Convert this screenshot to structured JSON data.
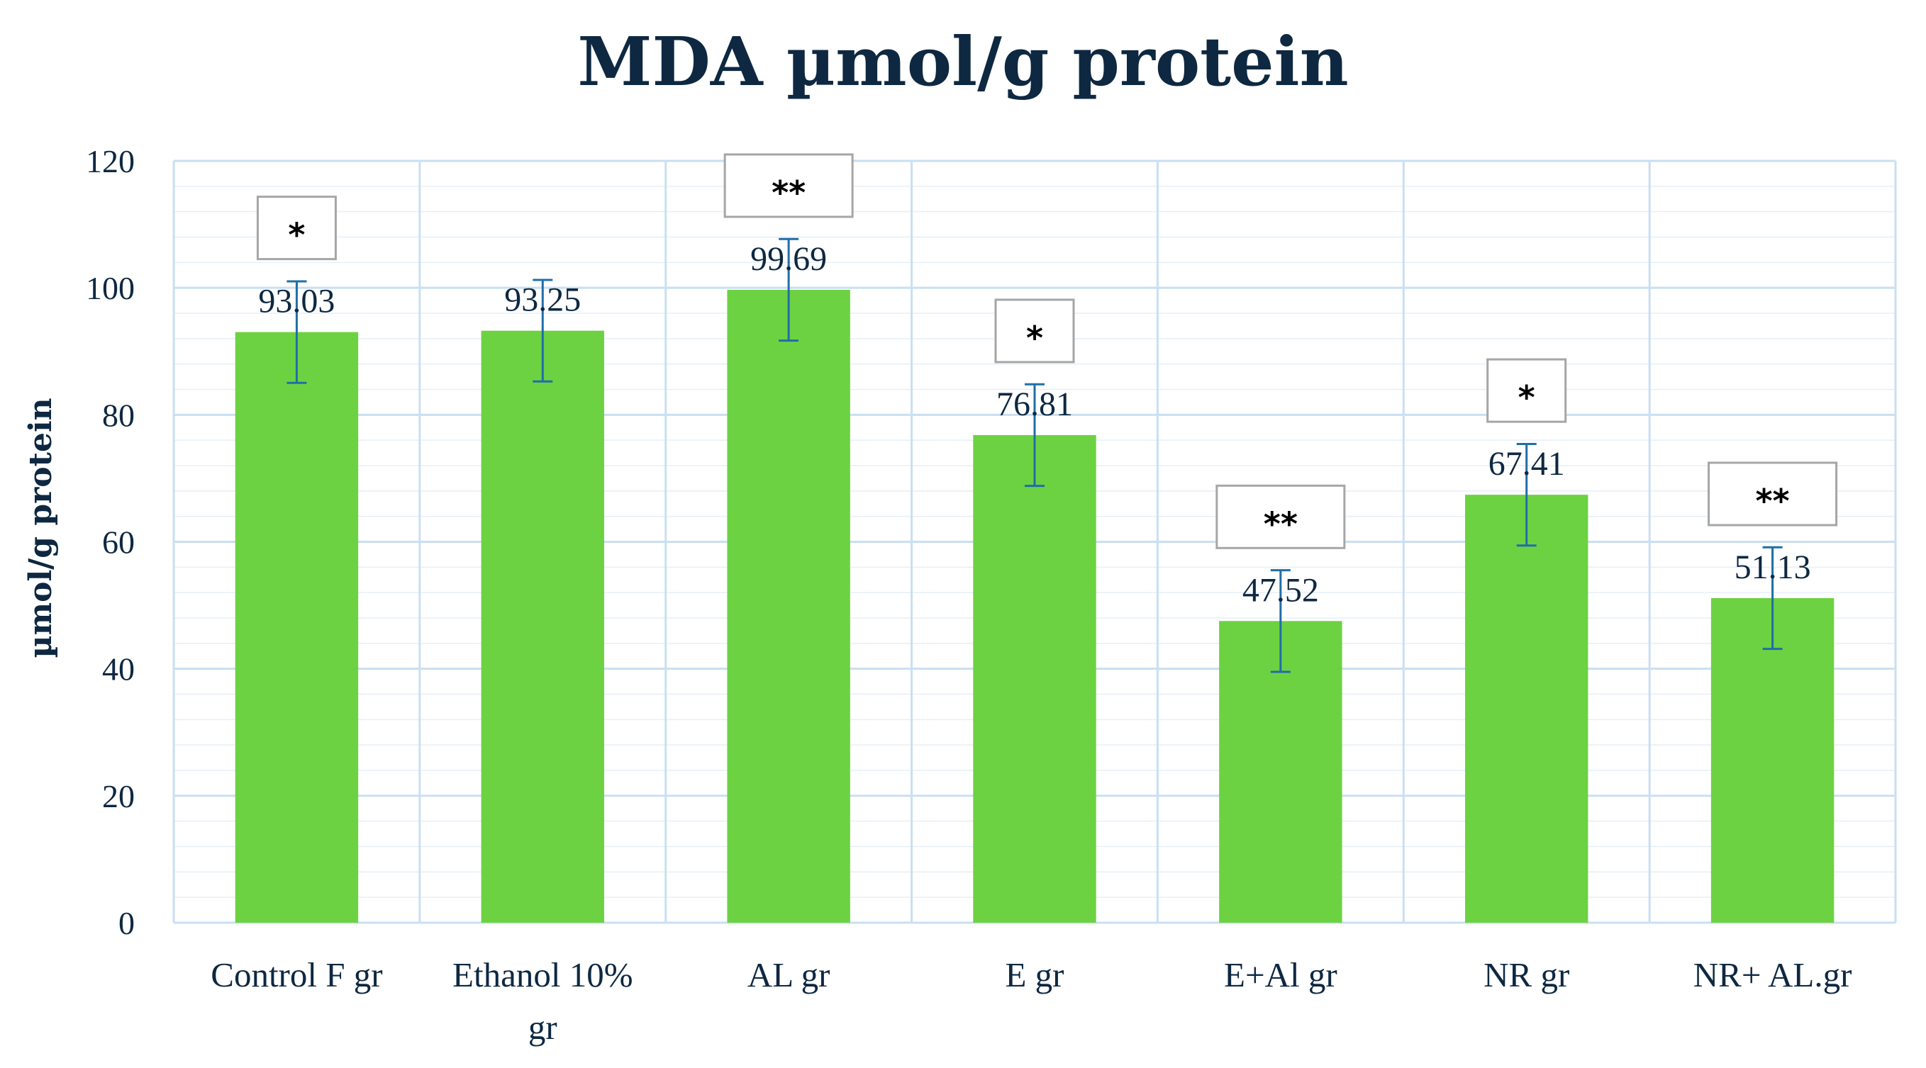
{
  "chart_data": {
    "type": "bar",
    "title": "MDA µmol/g protein",
    "xlabel": "",
    "ylabel": "µmol/g protein",
    "ylim": [
      0,
      120
    ],
    "yticks": [
      0,
      20,
      40,
      60,
      80,
      100,
      120
    ],
    "ytick_labels": [
      "0",
      "20",
      "40",
      "60",
      "80",
      "100",
      "120"
    ],
    "grid": true,
    "categories": [
      [
        "Control F gr"
      ],
      [
        "Ethanol 10%",
        "gr"
      ],
      [
        "AL gr"
      ],
      [
        "E gr"
      ],
      [
        "E+Al gr"
      ],
      [
        "NR gr"
      ],
      [
        "NR+ AL.gr"
      ]
    ],
    "values": [
      93.03,
      93.25,
      99.69,
      76.81,
      47.52,
      67.41,
      51.13
    ],
    "value_labels": [
      "93.03",
      "93.25",
      "99.69",
      "76.81",
      "47.52",
      "67.41",
      "51.13"
    ],
    "error": 8,
    "significance": [
      "*",
      "",
      "**",
      "*",
      "**",
      "*",
      "**"
    ],
    "bar_color": "#6dd242",
    "error_color": "#1f6ea8",
    "grid_color": "#c9dff2",
    "text_color": "#0e2841"
  }
}
